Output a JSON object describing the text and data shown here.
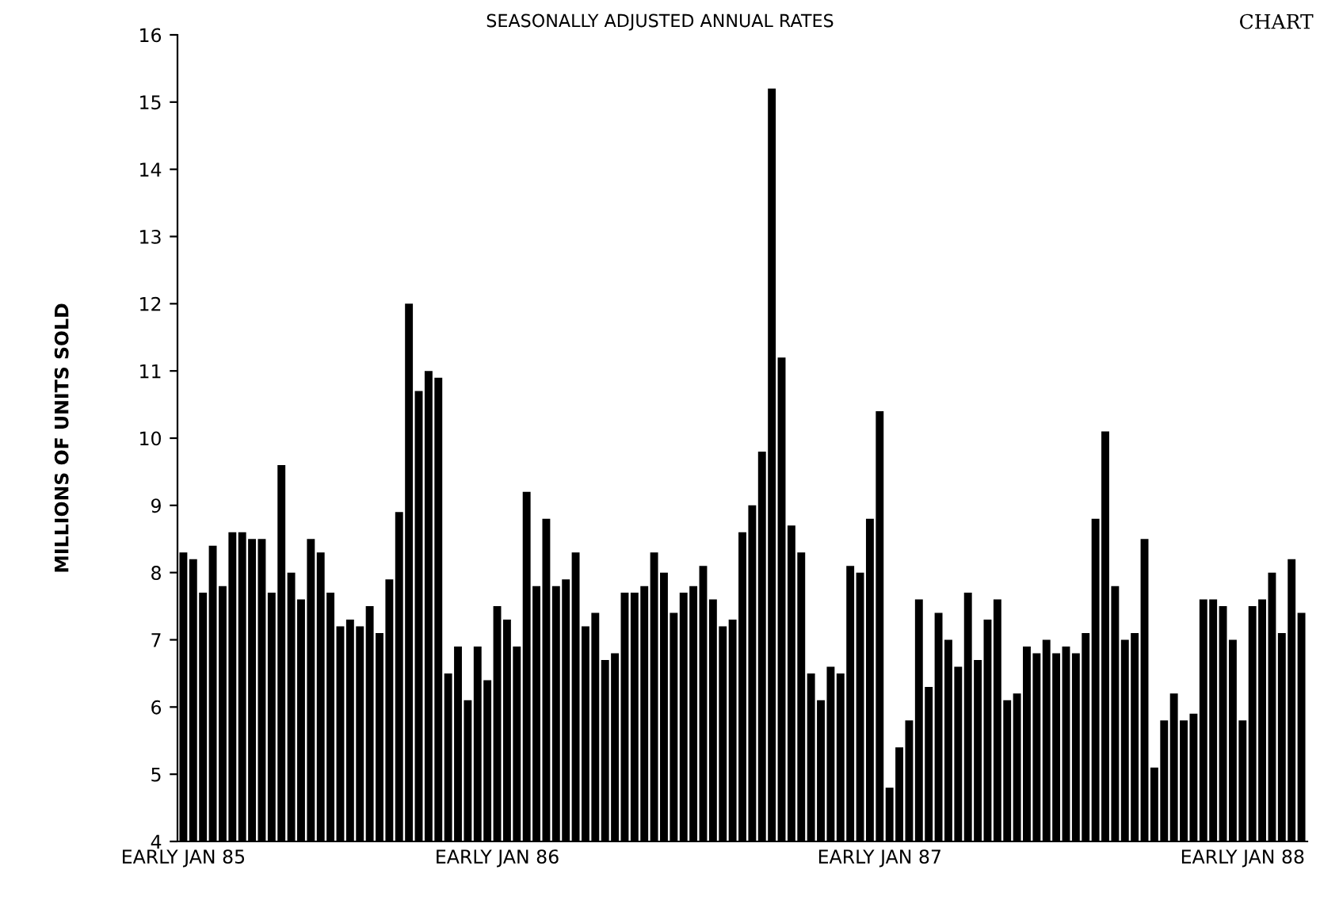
{
  "chart_data": {
    "type": "bar",
    "title": "SEASONALLY ADJUSTED ANNUAL RATES",
    "ylabel": "MILLIONS OF UNITS SOLD",
    "annotations": [
      "CHART"
    ],
    "categories": [
      "EARLY JAN 85",
      null,
      null,
      null,
      null,
      null,
      null,
      null,
      null,
      null,
      null,
      null,
      null,
      null,
      null,
      null,
      null,
      null,
      null,
      null,
      null,
      null,
      null,
      null,
      null,
      null,
      null,
      null,
      null,
      null,
      null,
      null,
      "EARLY JAN 86",
      null,
      null,
      null,
      null,
      null,
      null,
      null,
      null,
      null,
      null,
      null,
      null,
      null,
      null,
      null,
      null,
      null,
      null,
      null,
      null,
      null,
      null,
      null,
      null,
      null,
      null,
      null,
      null,
      null,
      null,
      null,
      null,
      null,
      null,
      null,
      null,
      null,
      null,
      "EARLY JAN 87",
      null,
      null,
      null,
      null,
      null,
      null,
      null,
      null,
      null,
      null,
      null,
      null,
      null,
      null,
      null,
      null,
      null,
      null,
      null,
      null,
      null,
      null,
      null,
      null,
      null,
      null,
      null,
      null,
      null,
      null,
      null,
      null,
      null,
      null,
      null,
      null,
      "EARLY JAN 88",
      null,
      null,
      null,
      null,
      null,
      null
    ],
    "values": [
      8.3,
      8.2,
      7.7,
      8.4,
      7.8,
      8.6,
      8.6,
      8.5,
      8.5,
      7.7,
      9.6,
      8.0,
      7.6,
      8.5,
      8.3,
      7.7,
      7.2,
      7.3,
      7.2,
      7.5,
      7.1,
      7.9,
      8.9,
      12.0,
      10.7,
      11.0,
      10.9,
      6.5,
      6.9,
      6.1,
      6.9,
      6.4,
      7.5,
      7.3,
      6.9,
      9.2,
      7.8,
      8.8,
      7.8,
      7.9,
      8.3,
      7.2,
      7.4,
      6.7,
      6.8,
      7.7,
      7.7,
      7.8,
      8.3,
      8.0,
      7.4,
      7.7,
      7.8,
      8.1,
      7.6,
      7.2,
      7.3,
      8.6,
      9.0,
      9.8,
      15.2,
      11.2,
      8.7,
      8.3,
      6.5,
      6.1,
      6.6,
      6.5,
      8.1,
      8.0,
      8.8,
      10.4,
      4.8,
      5.4,
      5.8,
      7.6,
      6.3,
      7.4,
      7.0,
      6.6,
      7.7,
      6.7,
      7.3,
      7.6,
      6.1,
      6.2,
      6.9,
      6.8,
      7.0,
      6.8,
      6.9,
      6.8,
      7.1,
      8.8,
      10.1,
      7.8,
      7.0,
      7.1,
      8.5,
      5.1,
      5.8,
      6.2,
      5.8,
      5.9,
      7.6,
      7.6,
      7.5,
      7.0,
      5.8,
      7.5,
      7.6,
      8.0,
      7.1,
      8.2,
      7.4
    ],
    "color": "#000000",
    "ylim": [
      4,
      16
    ],
    "yticks": [
      4,
      5,
      6,
      7,
      8,
      9,
      10,
      11,
      12,
      13,
      14,
      15,
      16
    ],
    "grid": false,
    "legend": false
  }
}
